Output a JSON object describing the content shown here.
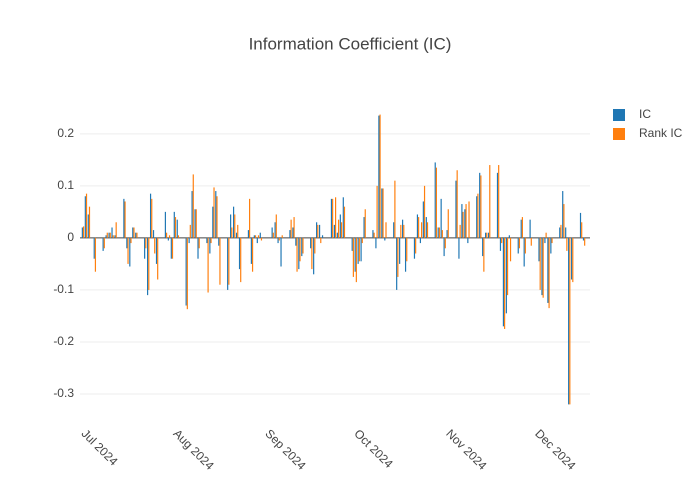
{
  "chart_data": {
    "type": "bar",
    "title": "Information Coefficient (IC)",
    "x": [
      "2024-07-01",
      "2024-07-02",
      "2024-07-03",
      "2024-07-05",
      "2024-07-08",
      "2024-07-09",
      "2024-07-10",
      "2024-07-11",
      "2024-07-12",
      "2024-07-15",
      "2024-07-16",
      "2024-07-17",
      "2024-07-18",
      "2024-07-19",
      "2024-07-22",
      "2024-07-23",
      "2024-07-24",
      "2024-07-25",
      "2024-07-26",
      "2024-07-29",
      "2024-07-30",
      "2024-07-31",
      "2024-08-01",
      "2024-08-02",
      "2024-08-05",
      "2024-08-06",
      "2024-08-07",
      "2024-08-08",
      "2024-08-09",
      "2024-08-12",
      "2024-08-13",
      "2024-08-14",
      "2024-08-15",
      "2024-08-16",
      "2024-08-19",
      "2024-08-20",
      "2024-08-21",
      "2024-08-22",
      "2024-08-23",
      "2024-08-26",
      "2024-08-27",
      "2024-08-28",
      "2024-08-29",
      "2024-08-30",
      "2024-09-03",
      "2024-09-04",
      "2024-09-05",
      "2024-09-06",
      "2024-09-09",
      "2024-09-10",
      "2024-09-11",
      "2024-09-12",
      "2024-09-13",
      "2024-09-16",
      "2024-09-17",
      "2024-09-18",
      "2024-09-19",
      "2024-09-20",
      "2024-09-23",
      "2024-09-24",
      "2024-09-25",
      "2024-09-26",
      "2024-09-27",
      "2024-09-30",
      "2024-10-01",
      "2024-10-02",
      "2024-10-03",
      "2024-10-04",
      "2024-10-07",
      "2024-10-08",
      "2024-10-09",
      "2024-10-10",
      "2024-10-11",
      "2024-10-14",
      "2024-10-15",
      "2024-10-16",
      "2024-10-17",
      "2024-10-18",
      "2024-10-21",
      "2024-10-22",
      "2024-10-23",
      "2024-10-24",
      "2024-10-25",
      "2024-10-28",
      "2024-10-29",
      "2024-10-30",
      "2024-10-31",
      "2024-11-01",
      "2024-11-04",
      "2024-11-05",
      "2024-11-06",
      "2024-11-07",
      "2024-11-08",
      "2024-11-11",
      "2024-11-12",
      "2024-11-13",
      "2024-11-14",
      "2024-11-15",
      "2024-11-18",
      "2024-11-19",
      "2024-11-20",
      "2024-11-21",
      "2024-11-22",
      "2024-11-25",
      "2024-11-26",
      "2024-11-27",
      "2024-11-29",
      "2024-12-02",
      "2024-12-03",
      "2024-12-04",
      "2024-12-05",
      "2024-12-06",
      "2024-12-09",
      "2024-12-10",
      "2024-12-11",
      "2024-12-12",
      "2024-12-13",
      "2024-12-16",
      "2024-12-17"
    ],
    "series": [
      {
        "name": "IC",
        "color": "#1f77b4",
        "values": [
          0.02,
          0.08,
          0.045,
          -0.04,
          -0.025,
          0.005,
          0.01,
          0.02,
          0.005,
          0.075,
          -0.02,
          -0.055,
          0.02,
          0.01,
          -0.04,
          -0.11,
          0.085,
          0.015,
          -0.05,
          0.05,
          -0.005,
          -0.04,
          0.05,
          0.035,
          -0.13,
          -0.01,
          0.09,
          0.055,
          -0.04,
          -0.01,
          -0.03,
          0.06,
          0.09,
          -0.015,
          -0.1,
          0.045,
          0.06,
          0.01,
          -0.06,
          0.015,
          -0.05,
          0.005,
          -0.01,
          0.01,
          0.02,
          0.03,
          -0.01,
          -0.055,
          0.015,
          0.02,
          -0.015,
          -0.06,
          -0.035,
          -0.02,
          -0.07,
          0.03,
          0.025,
          0.005,
          0.075,
          0.025,
          0.01,
          0.045,
          0.078,
          -0.025,
          -0.065,
          -0.05,
          -0.045,
          0.04,
          0.015,
          -0.02,
          0.235,
          0.095,
          -0.005,
          0.03,
          -0.1,
          -0.05,
          0.035,
          -0.065,
          -0.04,
          0.045,
          -0.01,
          0.07,
          0.04,
          0.145,
          0.02,
          0.075,
          -0.035,
          0.015,
          0.11,
          -0.04,
          0.065,
          0.055,
          -0.01,
          0.08,
          0.125,
          -0.035,
          0.01,
          0.01,
          0.125,
          -0.025,
          -0.17,
          -0.145,
          0.005,
          -0.03,
          0.035,
          -0.055,
          0.035,
          -0.045,
          -0.11,
          -0.01,
          -0.125,
          -0.03,
          0.02,
          0.09,
          0.02,
          -0.32,
          -0.08,
          0.048,
          -0.005
        ]
      },
      {
        "name": "Rank IC",
        "color": "#ff7f0e",
        "values": [
          0.022,
          0.085,
          0.06,
          -0.065,
          -0.02,
          0.01,
          0.01,
          0.005,
          0.03,
          0.07,
          -0.05,
          -0.01,
          0.02,
          0.01,
          -0.02,
          -0.1,
          0.075,
          -0.03,
          -0.08,
          0.01,
          0.005,
          -0.04,
          0.04,
          0.005,
          -0.137,
          0.025,
          0.122,
          0.055,
          -0.02,
          -0.105,
          -0.01,
          0.097,
          0.08,
          -0.09,
          -0.09,
          0.02,
          0.045,
          0.025,
          -0.085,
          0.075,
          -0.065,
          0.005,
          0.005,
          -0.005,
          0.01,
          0.045,
          -0.005,
          0.005,
          0.035,
          0.04,
          -0.065,
          -0.045,
          -0.03,
          -0.06,
          -0.03,
          0.025,
          -0.01,
          0,
          0.075,
          0.078,
          0.035,
          0.03,
          0.06,
          -0.075,
          -0.085,
          -0.045,
          -0.01,
          0.055,
          0.01,
          0.1,
          0.237,
          0.095,
          0.03,
          0.11,
          -0.075,
          0.025,
          0.025,
          -0.045,
          -0.03,
          0.04,
          0.03,
          0.1,
          0.03,
          0.135,
          0.02,
          0.015,
          -0.02,
          0.055,
          0.13,
          0.025,
          0.05,
          0.065,
          0.07,
          0.085,
          0.12,
          -0.065,
          0.01,
          0.14,
          0.14,
          -0.01,
          -0.175,
          -0.11,
          -0.045,
          -0.02,
          0.04,
          -0.03,
          -0.015,
          -0.1,
          -0.115,
          0.01,
          -0.135,
          -0.01,
          0.025,
          0.065,
          -0.025,
          -0.32,
          -0.085,
          0.03,
          -0.015
        ]
      }
    ],
    "xlim": [
      "2024-06-30",
      "2024-12-19"
    ],
    "xticks": [
      {
        "value": "2024-07-01",
        "label": "Jul 2024"
      },
      {
        "value": "2024-08-01",
        "label": "Aug 2024"
      },
      {
        "value": "2024-09-01",
        "label": "Sep 2024"
      },
      {
        "value": "2024-10-01",
        "label": "Oct 2024"
      },
      {
        "value": "2024-11-01",
        "label": "Nov 2024"
      },
      {
        "value": "2024-12-01",
        "label": "Dec 2024"
      }
    ],
    "ylim": [
      -0.35,
      0.265
    ],
    "yticks": [
      -0.3,
      -0.2,
      -0.1,
      0,
      0.1,
      0.2
    ],
    "grid": true,
    "legend": "top-right"
  }
}
